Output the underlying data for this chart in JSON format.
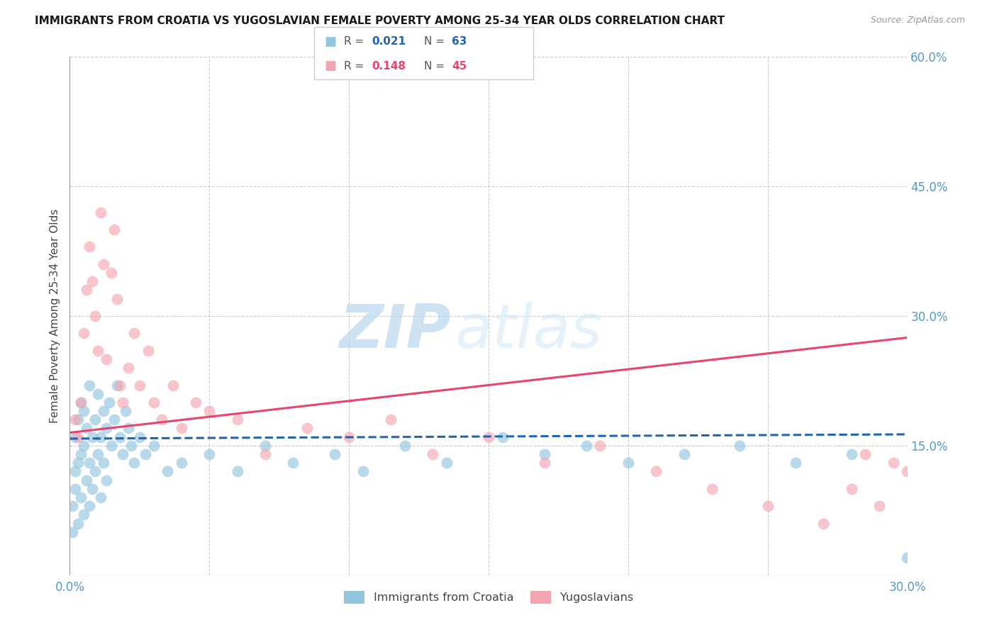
{
  "title": "IMMIGRANTS FROM CROATIA VS YUGOSLAVIAN FEMALE POVERTY AMONG 25-34 YEAR OLDS CORRELATION CHART",
  "source": "Source: ZipAtlas.com",
  "ylabel": "Female Poverty Among 25-34 Year Olds",
  "legend_label1": "Immigrants from Croatia",
  "legend_label2": "Yugoslavians",
  "R1": "0.021",
  "N1": "63",
  "R2": "0.148",
  "N2": "45",
  "xlim": [
    0.0,
    0.3
  ],
  "ylim": [
    0.0,
    0.6
  ],
  "xticks": [
    0.0,
    0.05,
    0.1,
    0.15,
    0.2,
    0.25,
    0.3
  ],
  "xtick_labels": [
    "0.0%",
    "",
    "",
    "",
    "",
    "",
    "30.0%"
  ],
  "yticks_right": [
    0.15,
    0.3,
    0.45,
    0.6
  ],
  "ytick_labels_right": [
    "15.0%",
    "30.0%",
    "45.0%",
    "60.0%"
  ],
  "color_blue": "#92c5de",
  "color_pink": "#f4a6b0",
  "color_blue_line": "#2166ac",
  "color_pink_line": "#e8446e",
  "color_axis_labels": "#5599cc",
  "watermark_zip": "ZIP",
  "watermark_atlas": "atlas",
  "blue_line_start": 0.158,
  "blue_line_end": 0.163,
  "pink_line_start": 0.165,
  "pink_line_end": 0.275,
  "blue_x": [
    0.001,
    0.001,
    0.002,
    0.002,
    0.002,
    0.003,
    0.003,
    0.003,
    0.004,
    0.004,
    0.004,
    0.005,
    0.005,
    0.005,
    0.006,
    0.006,
    0.007,
    0.007,
    0.007,
    0.008,
    0.008,
    0.009,
    0.009,
    0.01,
    0.01,
    0.011,
    0.011,
    0.012,
    0.012,
    0.013,
    0.013,
    0.014,
    0.015,
    0.016,
    0.017,
    0.018,
    0.019,
    0.02,
    0.021,
    0.022,
    0.023,
    0.025,
    0.027,
    0.03,
    0.035,
    0.04,
    0.05,
    0.06,
    0.07,
    0.08,
    0.095,
    0.105,
    0.12,
    0.135,
    0.155,
    0.17,
    0.185,
    0.2,
    0.22,
    0.24,
    0.26,
    0.28,
    0.3
  ],
  "blue_y": [
    0.05,
    0.08,
    0.1,
    0.12,
    0.16,
    0.06,
    0.13,
    0.18,
    0.09,
    0.14,
    0.2,
    0.07,
    0.15,
    0.19,
    0.11,
    0.17,
    0.08,
    0.13,
    0.22,
    0.1,
    0.16,
    0.12,
    0.18,
    0.14,
    0.21,
    0.09,
    0.16,
    0.13,
    0.19,
    0.11,
    0.17,
    0.2,
    0.15,
    0.18,
    0.22,
    0.16,
    0.14,
    0.19,
    0.17,
    0.15,
    0.13,
    0.16,
    0.14,
    0.15,
    0.12,
    0.13,
    0.14,
    0.12,
    0.15,
    0.13,
    0.14,
    0.12,
    0.15,
    0.13,
    0.16,
    0.14,
    0.15,
    0.13,
    0.14,
    0.15,
    0.13,
    0.14,
    0.02
  ],
  "pink_x": [
    0.002,
    0.003,
    0.004,
    0.005,
    0.006,
    0.007,
    0.008,
    0.009,
    0.01,
    0.011,
    0.012,
    0.013,
    0.015,
    0.016,
    0.017,
    0.018,
    0.019,
    0.021,
    0.023,
    0.025,
    0.028,
    0.03,
    0.033,
    0.037,
    0.04,
    0.045,
    0.05,
    0.06,
    0.07,
    0.085,
    0.1,
    0.115,
    0.13,
    0.15,
    0.17,
    0.19,
    0.21,
    0.23,
    0.25,
    0.27,
    0.285,
    0.295,
    0.3,
    0.29,
    0.28
  ],
  "pink_y": [
    0.18,
    0.16,
    0.2,
    0.28,
    0.33,
    0.38,
    0.34,
    0.3,
    0.26,
    0.42,
    0.36,
    0.25,
    0.35,
    0.4,
    0.32,
    0.22,
    0.2,
    0.24,
    0.28,
    0.22,
    0.26,
    0.2,
    0.18,
    0.22,
    0.17,
    0.2,
    0.19,
    0.18,
    0.14,
    0.17,
    0.16,
    0.18,
    0.14,
    0.16,
    0.13,
    0.15,
    0.12,
    0.1,
    0.08,
    0.06,
    0.14,
    0.13,
    0.12,
    0.08,
    0.1
  ]
}
